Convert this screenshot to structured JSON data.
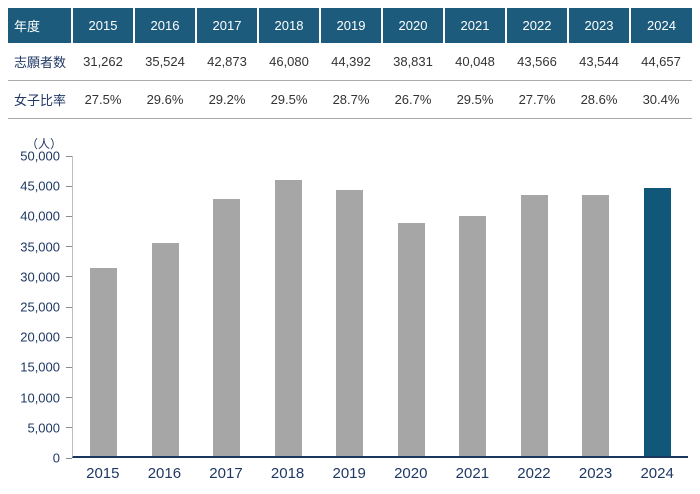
{
  "table": {
    "header_label": "年度",
    "years": [
      "2015",
      "2016",
      "2017",
      "2018",
      "2019",
      "2020",
      "2021",
      "2022",
      "2023",
      "2024"
    ],
    "rows": [
      {
        "label": "志願者数",
        "values": [
          "31,262",
          "35,524",
          "42,873",
          "46,080",
          "44,392",
          "38,831",
          "40,048",
          "43,566",
          "43,544",
          "44,657"
        ]
      },
      {
        "label": "女子比率",
        "values": [
          "27.5%",
          "29.6%",
          "29.2%",
          "29.5%",
          "28.7%",
          "26.7%",
          "29.5%",
          "27.7%",
          "28.6%",
          "30.4%"
        ]
      }
    ]
  },
  "chart_data": {
    "type": "bar",
    "title": "",
    "xlabel": "",
    "ylabel": "",
    "unit_label": "（人）",
    "categories": [
      "2015",
      "2016",
      "2017",
      "2018",
      "2019",
      "2020",
      "2021",
      "2022",
      "2023",
      "2024"
    ],
    "values": [
      31262,
      35524,
      42873,
      46080,
      44392,
      38831,
      40048,
      43566,
      43544,
      44657
    ],
    "ylim": [
      0,
      50000
    ],
    "ytick_step": 5000,
    "grid": false,
    "legend": "none",
    "bar_color": "#a6a6a6",
    "highlight_color": "#10577a",
    "highlight_index": 9
  },
  "colors": {
    "header_bg": "#1d5b7d",
    "axis_text": "#1f3864",
    "cell_text": "#333333",
    "axis_line": "#17375e"
  }
}
